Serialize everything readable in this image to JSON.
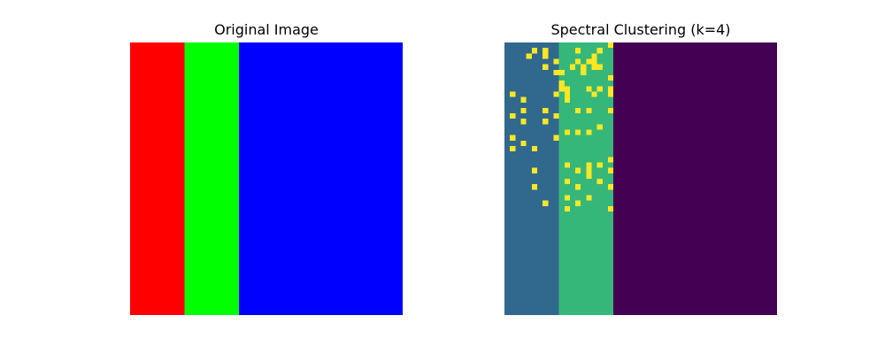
{
  "figure": {
    "panel_titles": [
      "Original Image",
      "Spectral Clustering (k=4)"
    ]
  },
  "chart_data": [
    {
      "type": "heatmap",
      "title": "Original Image",
      "axes": "off",
      "grid_size": [
        50,
        50
      ],
      "regions": [
        {
          "color_name": "red",
          "color": "#ff0000",
          "col_range": [
            0,
            9
          ]
        },
        {
          "color_name": "green",
          "color": "#00ff00",
          "col_range": [
            10,
            19
          ]
        },
        {
          "color_name": "blue",
          "color": "#0000ff",
          "col_range": [
            20,
            49
          ]
        }
      ]
    },
    {
      "type": "heatmap",
      "title": "Spectral Clustering (k=4)",
      "axes": "off",
      "grid_size": [
        50,
        50
      ],
      "colormap": "viridis",
      "cluster_colors": [
        "#440154",
        "#31688e",
        "#35b779",
        "#fde725"
      ],
      "regions": [
        {
          "cluster": 1,
          "col_range": [
            0,
            9
          ]
        },
        {
          "cluster": 2,
          "col_range": [
            10,
            19
          ]
        },
        {
          "cluster": 0,
          "col_range": [
            20,
            49
          ]
        }
      ],
      "cluster_3_cells": [
        [
          0,
          19
        ],
        [
          1,
          5
        ],
        [
          1,
          7
        ],
        [
          1,
          13
        ],
        [
          1,
          17
        ],
        [
          2,
          4
        ],
        [
          2,
          7
        ],
        [
          2,
          16
        ],
        [
          3,
          9
        ],
        [
          3,
          13
        ],
        [
          3,
          15
        ],
        [
          3,
          16
        ],
        [
          4,
          7
        ],
        [
          4,
          12
        ],
        [
          4,
          14
        ],
        [
          4,
          16
        ],
        [
          4,
          17
        ],
        [
          5,
          9
        ],
        [
          5,
          10
        ],
        [
          5,
          14
        ],
        [
          6,
          19
        ],
        [
          7,
          10
        ],
        [
          8,
          10
        ],
        [
          8,
          11
        ],
        [
          8,
          15
        ],
        [
          8,
          17
        ],
        [
          8,
          19
        ],
        [
          9,
          1
        ],
        [
          9,
          9
        ],
        [
          9,
          11
        ],
        [
          9,
          16
        ],
        [
          9,
          19
        ],
        [
          10,
          3
        ],
        [
          10,
          11
        ],
        [
          12,
          3
        ],
        [
          12,
          7
        ],
        [
          12,
          13
        ],
        [
          12,
          15
        ],
        [
          12,
          19
        ],
        [
          13,
          1
        ],
        [
          13,
          9
        ],
        [
          14,
          3
        ],
        [
          14,
          7
        ],
        [
          15,
          17
        ],
        [
          16,
          11
        ],
        [
          16,
          13
        ],
        [
          16,
          15
        ],
        [
          17,
          1
        ],
        [
          17,
          9
        ],
        [
          18,
          3
        ],
        [
          19,
          1
        ],
        [
          19,
          5
        ],
        [
          21,
          19
        ],
        [
          22,
          11
        ],
        [
          22,
          15
        ],
        [
          22,
          17
        ],
        [
          23,
          5
        ],
        [
          23,
          13
        ],
        [
          23,
          15
        ],
        [
          23,
          19
        ],
        [
          24,
          15
        ],
        [
          25,
          11
        ],
        [
          25,
          17
        ],
        [
          26,
          5
        ],
        [
          26,
          13
        ],
        [
          26,
          19
        ],
        [
          28,
          11
        ],
        [
          28,
          15
        ],
        [
          29,
          7
        ],
        [
          29,
          13
        ],
        [
          30,
          11
        ],
        [
          30,
          19
        ]
      ]
    }
  ]
}
